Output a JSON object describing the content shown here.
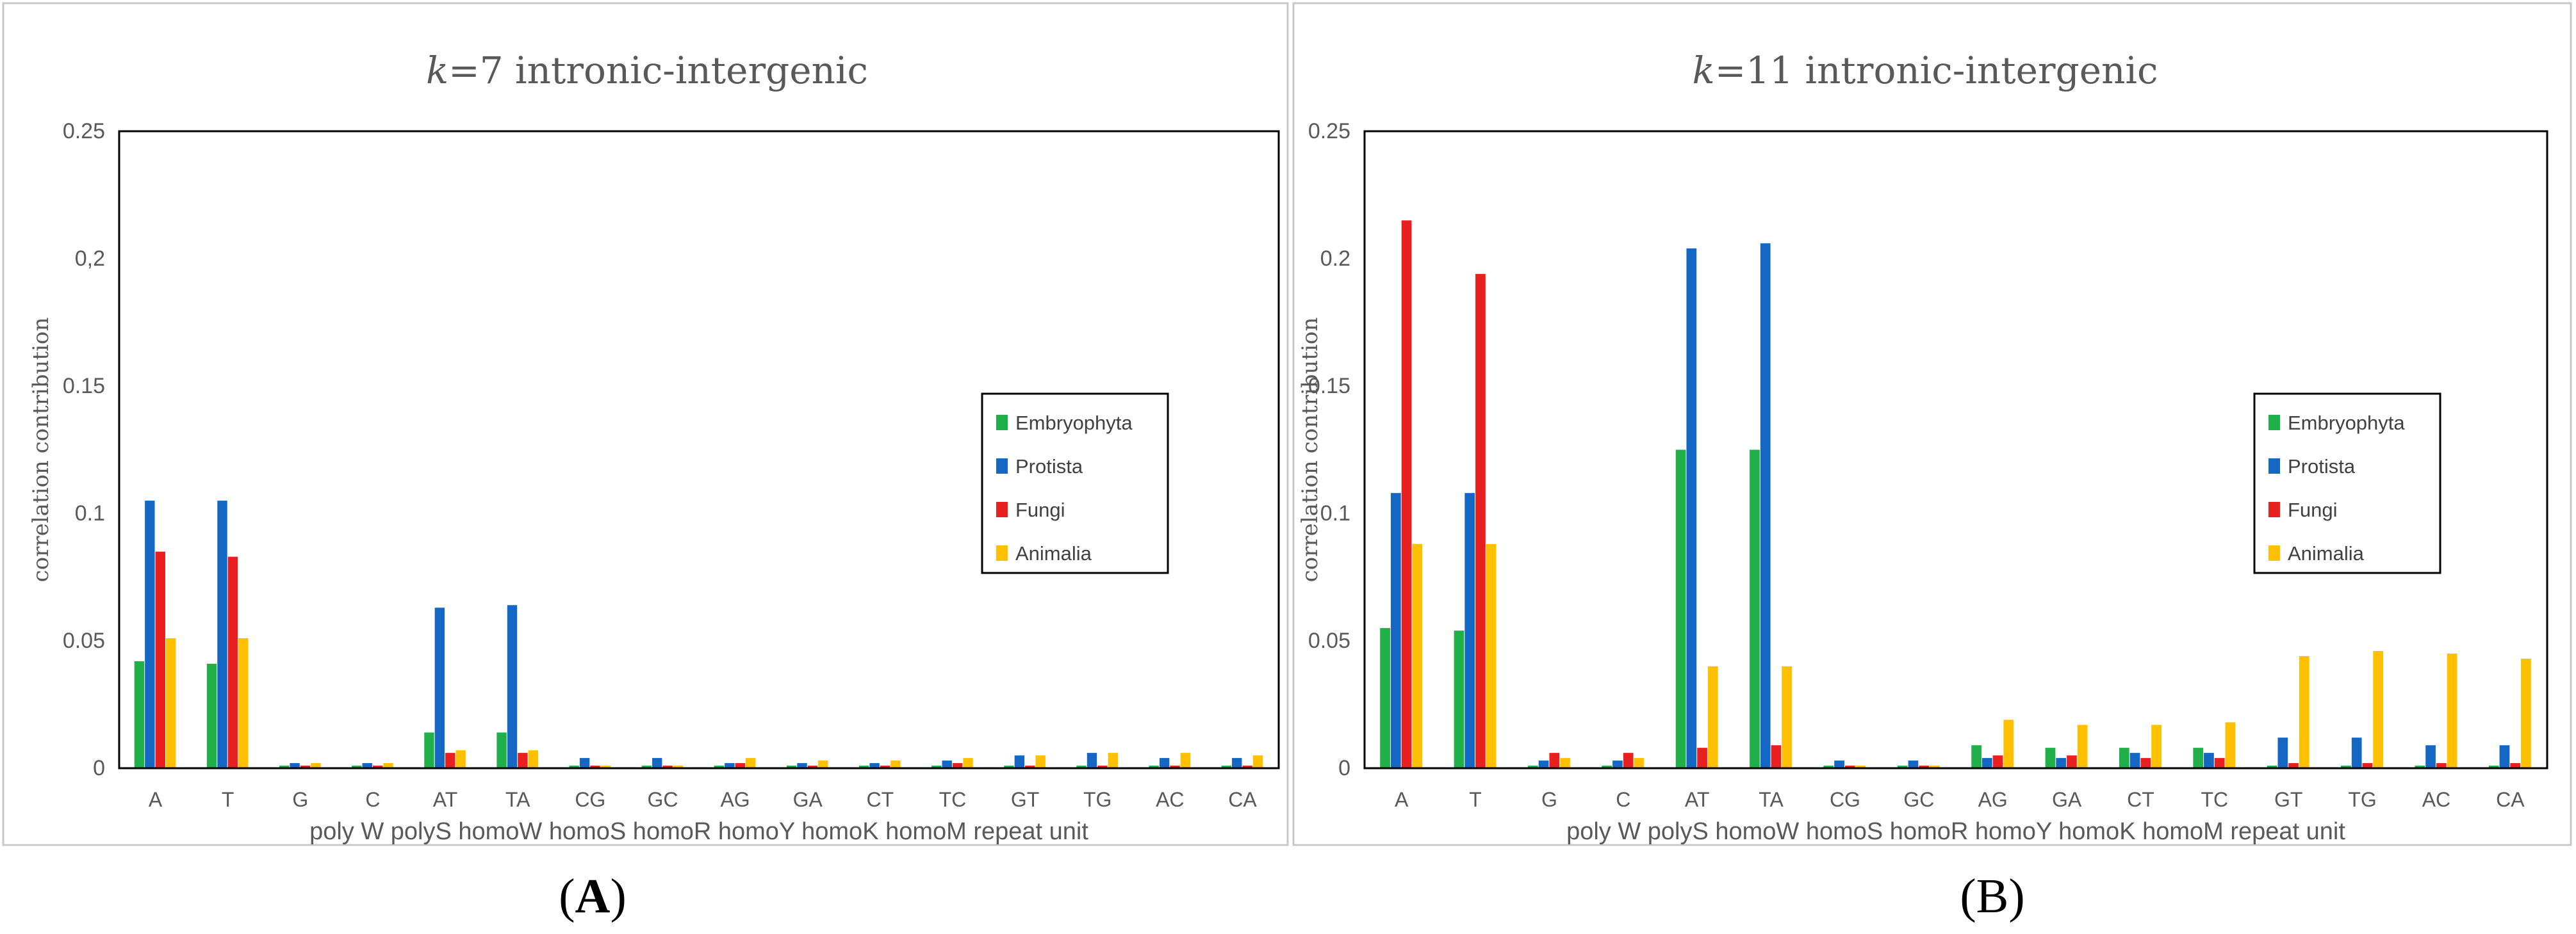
{
  "figure": {
    "series_colors": {
      "Embryophyta": "#1fb04a",
      "Protista": "#1567c4",
      "Fungi": "#e8201f",
      "Animalia": "#ffc000"
    },
    "frame_color": "#c8c8c8",
    "text_color": "#595959"
  },
  "chart_data": [
    {
      "type": "bar",
      "title_italic": "k",
      "title_rest": "=7 intronic-intergenic",
      "panel_label_open": "(",
      "panel_label_letter": "A",
      "panel_label_close": ")",
      "panel_label_bold": true,
      "xlabel": "poly W polyS homoW homoS homoR homoY homoK homoM repeat unit",
      "ylabel": "correlation contribution",
      "ylim": [
        0,
        0.25
      ],
      "yticks": [
        "0",
        "0.05",
        "0.1",
        "0.15",
        "0,2",
        "0.25"
      ],
      "ytick_values": [
        0,
        0.05,
        0.1,
        0.15,
        0.2,
        0.25
      ],
      "legend_position": "right",
      "categories": [
        "A",
        "T",
        "G",
        "C",
        "AT",
        "TA",
        "CG",
        "GC",
        "AG",
        "GA",
        "CT",
        "TC",
        "GT",
        "TG",
        "AC",
        "CA"
      ],
      "series": [
        {
          "name": "Embryophyta",
          "values": [
            0.042,
            0.041,
            0.001,
            0.001,
            0.014,
            0.014,
            0.001,
            0.001,
            0.001,
            0.001,
            0.001,
            0.001,
            0.001,
            0.001,
            0.001,
            0.001
          ]
        },
        {
          "name": "Protista",
          "values": [
            0.105,
            0.105,
            0.002,
            0.002,
            0.063,
            0.064,
            0.004,
            0.004,
            0.002,
            0.002,
            0.002,
            0.003,
            0.005,
            0.006,
            0.004,
            0.004
          ]
        },
        {
          "name": "Fungi",
          "values": [
            0.085,
            0.083,
            0.001,
            0.001,
            0.006,
            0.006,
            0.001,
            0.001,
            0.002,
            0.001,
            0.001,
            0.002,
            0.001,
            0.001,
            0.001,
            0.001
          ]
        },
        {
          "name": "Animalia",
          "values": [
            0.051,
            0.051,
            0.002,
            0.002,
            0.007,
            0.007,
            0.001,
            0.001,
            0.004,
            0.003,
            0.003,
            0.004,
            0.005,
            0.006,
            0.006,
            0.005
          ]
        }
      ]
    },
    {
      "type": "bar",
      "title_italic": "k",
      "title_rest": "=11 intronic-intergenic",
      "panel_label_open": "(",
      "panel_label_letter": "B",
      "panel_label_close": ")",
      "panel_label_bold": false,
      "xlabel": "poly W polyS homoW homoS homoR homoY homoK homoM repeat unit",
      "ylabel": "correlation contribution",
      "ylim": [
        0,
        0.25
      ],
      "yticks": [
        "0",
        "0.05",
        "0.1",
        "0.15",
        "0.2",
        "0.25"
      ],
      "ytick_values": [
        0,
        0.05,
        0.1,
        0.15,
        0.2,
        0.25
      ],
      "legend_position": "right",
      "categories": [
        "A",
        "T",
        "G",
        "C",
        "AT",
        "TA",
        "CG",
        "GC",
        "AG",
        "GA",
        "CT",
        "TC",
        "GT",
        "TG",
        "AC",
        "CA"
      ],
      "series": [
        {
          "name": "Embryophyta",
          "values": [
            0.055,
            0.054,
            0.001,
            0.001,
            0.125,
            0.125,
            0.001,
            0.001,
            0.009,
            0.008,
            0.008,
            0.008,
            0.001,
            0.001,
            0.001,
            0.001
          ]
        },
        {
          "name": "Protista",
          "values": [
            0.108,
            0.108,
            0.003,
            0.003,
            0.204,
            0.206,
            0.003,
            0.003,
            0.004,
            0.004,
            0.006,
            0.006,
            0.012,
            0.012,
            0.009,
            0.009
          ]
        },
        {
          "name": "Fungi",
          "values": [
            0.215,
            0.194,
            0.006,
            0.006,
            0.008,
            0.009,
            0.001,
            0.001,
            0.005,
            0.005,
            0.004,
            0.004,
            0.002,
            0.002,
            0.002,
            0.002
          ]
        },
        {
          "name": "Animalia",
          "values": [
            0.088,
            0.088,
            0.004,
            0.004,
            0.04,
            0.04,
            0.001,
            0.001,
            0.019,
            0.017,
            0.017,
            0.018,
            0.044,
            0.046,
            0.045,
            0.043
          ]
        }
      ]
    }
  ]
}
